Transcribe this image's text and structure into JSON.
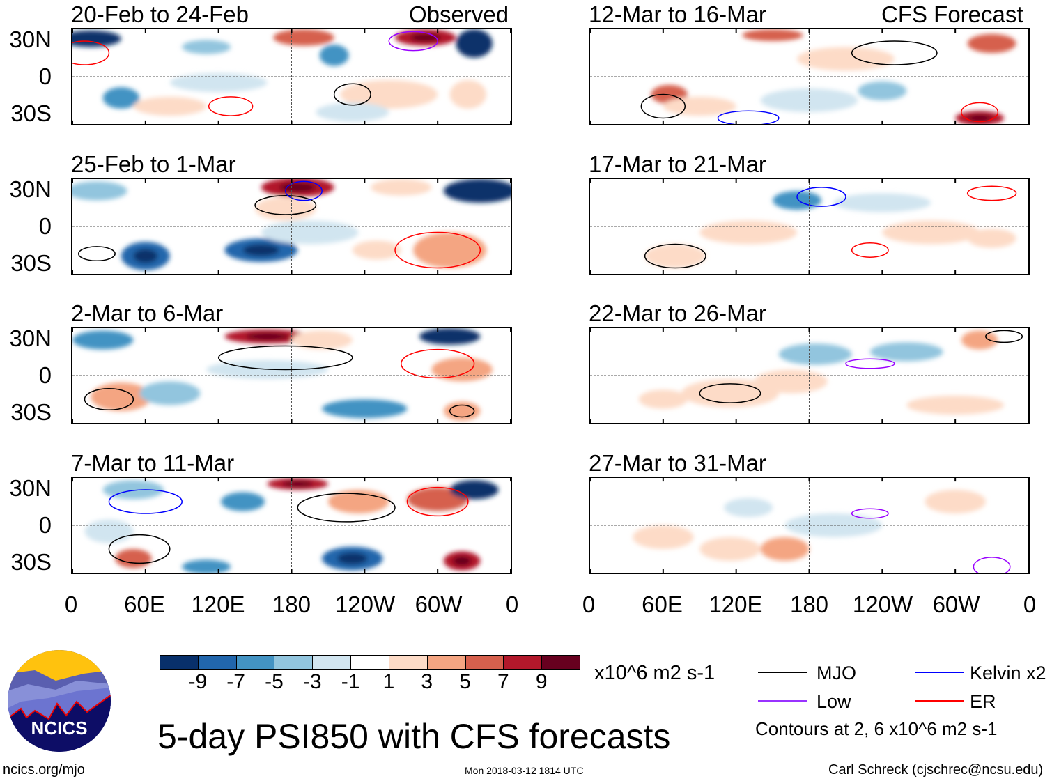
{
  "left_column_label": "Observed",
  "right_column_label": "CFS Forecast",
  "panels_left": [
    "20-Feb to 24-Feb",
    "25-Feb to 1-Mar",
    "2-Mar to 6-Mar",
    "7-Mar to 11-Mar"
  ],
  "panels_right": [
    "12-Mar to 16-Mar",
    "17-Mar to 21-Mar",
    "22-Mar to 26-Mar",
    "27-Mar to 31-Mar"
  ],
  "lat_labels": [
    "30N",
    "0",
    "30S"
  ],
  "lon_labels": [
    "0",
    "60E",
    "120E",
    "180",
    "120W",
    "60W",
    "0"
  ],
  "colorbar": {
    "colors": [
      "#08306b",
      "#2166ac",
      "#4393c3",
      "#92c5de",
      "#d1e5f0",
      "#ffffff",
      "#fddbc7",
      "#f4a582",
      "#d6604d",
      "#b2182b",
      "#67001f"
    ],
    "labels": [
      "-9",
      "-7",
      "-5",
      "-3",
      "-1",
      "1",
      "3",
      "5",
      "7",
      "9"
    ],
    "units": "x10^6 m2 s-1"
  },
  "title": "5-day PSI850 with CFS forecasts",
  "legend": [
    {
      "label": "MJO",
      "color": "#000000"
    },
    {
      "label": "Kelvin x2",
      "color": "#0000ff"
    },
    {
      "label": "Low",
      "color": "#9933ff"
    },
    {
      "label": "ER",
      "color": "#ff0000"
    }
  ],
  "contour_note": "Contours at 2, 6 x10^6 m2 s-1",
  "logo_text": "NCICS",
  "url": "ncics.org/mjo",
  "timestamp": "Mon 2018-03-12 1814 UTC",
  "credit": "Carl Schreck (cjschrec@ncsu.edu)"
}
